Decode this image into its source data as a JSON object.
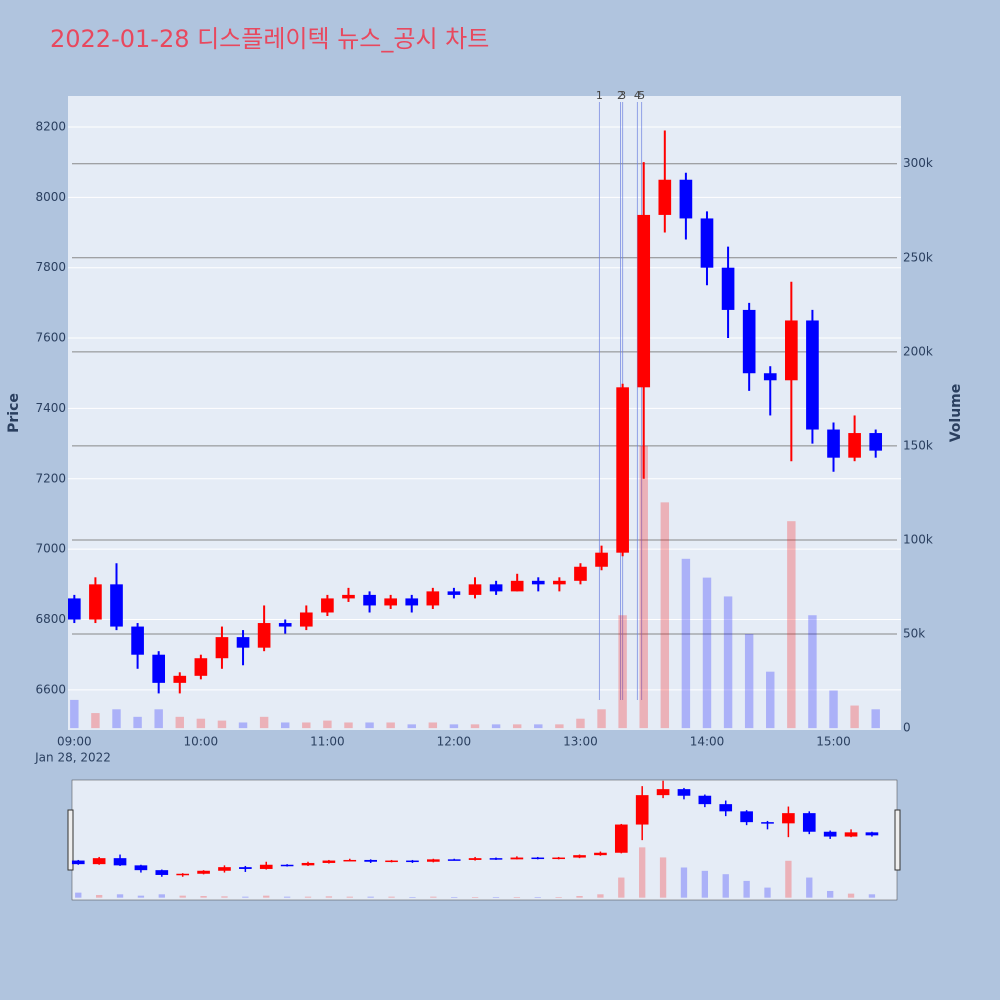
{
  "chart_data": {
    "type": "candlestick",
    "title": "2022-01-28 디스플레이텍 뉴스_공시 차트",
    "ylabel": "Price",
    "y2label": "Volume",
    "x_date_label": "Jan 28, 2022",
    "increasing_color": "#ff0000",
    "decreasing_color": "#0000ff",
    "x": [
      "09:00",
      "09:10",
      "09:20",
      "09:30",
      "09:40",
      "09:50",
      "10:00",
      "10:10",
      "10:20",
      "10:30",
      "10:40",
      "10:50",
      "11:00",
      "11:10",
      "11:20",
      "11:30",
      "11:40",
      "11:50",
      "12:00",
      "12:10",
      "12:20",
      "12:30",
      "12:40",
      "12:50",
      "13:00",
      "13:10",
      "13:20",
      "13:30",
      "13:40",
      "13:50",
      "14:00",
      "14:10",
      "14:20",
      "14:30",
      "14:40",
      "14:50",
      "15:00",
      "15:10",
      "15:20"
    ],
    "open": [
      6860,
      6800,
      6900,
      6780,
      6700,
      6620,
      6640,
      6690,
      6750,
      6720,
      6790,
      6780,
      6820,
      6860,
      6870,
      6840,
      6860,
      6840,
      6880,
      6870,
      6900,
      6880,
      6910,
      6900,
      6910,
      6950,
      6990,
      7460,
      7950,
      8050,
      7940,
      7800,
      7680,
      7500,
      7480,
      7650,
      7340,
      7260,
      7330
    ],
    "high": [
      6870,
      6920,
      6960,
      6790,
      6710,
      6650,
      6700,
      6780,
      6770,
      6840,
      6800,
      6840,
      6870,
      6890,
      6880,
      6870,
      6870,
      6890,
      6890,
      6920,
      6910,
      6930,
      6920,
      6920,
      6960,
      7010,
      7470,
      8100,
      8190,
      8070,
      7960,
      7860,
      7700,
      7520,
      7760,
      7680,
      7360,
      7380,
      7340
    ],
    "low": [
      6790,
      6790,
      6770,
      6660,
      6590,
      6590,
      6630,
      6660,
      6670,
      6710,
      6760,
      6770,
      6810,
      6850,
      6820,
      6830,
      6820,
      6830,
      6860,
      6860,
      6870,
      6880,
      6880,
      6880,
      6900,
      6940,
      6980,
      7200,
      7900,
      7880,
      7750,
      7600,
      7450,
      7380,
      7250,
      7300,
      7220,
      7250,
      7260
    ],
    "close": [
      6800,
      6900,
      6780,
      6700,
      6620,
      6640,
      6690,
      6750,
      6720,
      6790,
      6780,
      6820,
      6860,
      6870,
      6840,
      6860,
      6840,
      6880,
      6870,
      6900,
      6880,
      6910,
      6900,
      6910,
      6950,
      6990,
      7460,
      7950,
      8050,
      7940,
      7800,
      7680,
      7500,
      7480,
      7650,
      7340,
      7260,
      7330,
      7280
    ],
    "volume": [
      15000,
      8000,
      10000,
      6000,
      10000,
      6000,
      5000,
      4000,
      3000,
      6000,
      3000,
      3000,
      4000,
      3000,
      3000,
      3000,
      2000,
      3000,
      2000,
      2000,
      2000,
      2000,
      2000,
      2000,
      5000,
      10000,
      60000,
      150000,
      120000,
      90000,
      80000,
      70000,
      50000,
      30000,
      110000,
      60000,
      20000,
      12000,
      10000
    ],
    "xlim": [
      "08:57",
      "15:32"
    ],
    "xticks": [
      "09:00",
      "10:00",
      "11:00",
      "12:00",
      "13:00",
      "14:00",
      "15:00"
    ],
    "ylim": [
      6486,
      8288
    ],
    "yticks": [
      6600,
      6800,
      7000,
      7200,
      7400,
      7600,
      7800,
      8000,
      8200
    ],
    "y2lim": [
      -1000,
      336000
    ],
    "y2ticks": [
      0,
      {
        "value": 50000,
        "label": "50k"
      },
      {
        "value": 100000,
        "label": "100k"
      },
      {
        "value": 150000,
        "label": "150k"
      },
      {
        "value": 200000,
        "label": "200k"
      },
      {
        "value": 250000,
        "label": "250k"
      },
      {
        "value": 300000,
        "label": "300k"
      }
    ],
    "annotations": [
      {
        "x": "13:09",
        "label": "1"
      },
      {
        "x": "13:19",
        "label": "2"
      },
      {
        "x": "13:20",
        "label": "3"
      },
      {
        "x": "13:27",
        "label": "4"
      },
      {
        "x": "13:29",
        "label": "5"
      }
    ]
  }
}
